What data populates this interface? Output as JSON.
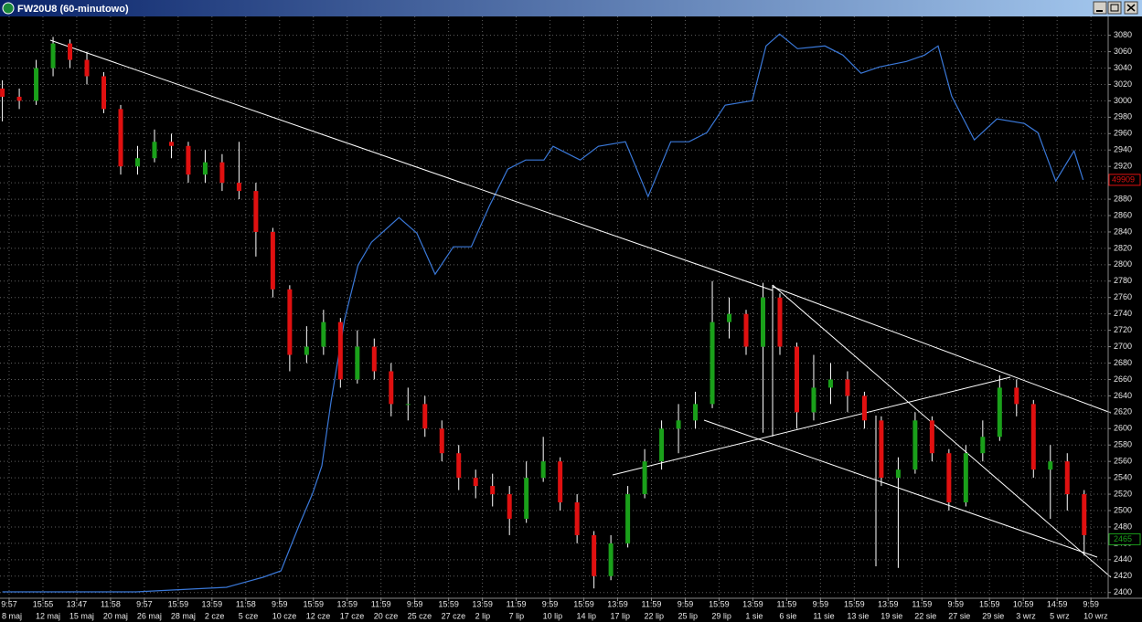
{
  "window_title": "FW20U8 (60-minutowo)",
  "chart_data": {
    "type": "candlestick",
    "xlim": [
      -0.27,
      32.51
    ],
    "ylim": [
      2393,
      3103
    ],
    "yticks": [
      2400,
      2420,
      2440,
      2460,
      2480,
      2500,
      2520,
      2540,
      2560,
      2580,
      2600,
      2620,
      2640,
      2660,
      2680,
      2700,
      2720,
      2740,
      2760,
      2780,
      2800,
      2820,
      2840,
      2860,
      2880,
      2900,
      2920,
      2940,
      2960,
      2980,
      3000,
      3020,
      3040,
      3060,
      3080
    ],
    "xticks": [
      {
        "value": 0,
        "label": "9:57",
        "date": "8 maj"
      },
      {
        "value": 1,
        "label": "15:55",
        "date": "12 maj"
      },
      {
        "value": 2,
        "label": "13:47",
        "date": "15 maj"
      },
      {
        "value": 3,
        "label": "11:58",
        "date": "20 maj"
      },
      {
        "value": 4,
        "label": "9:57",
        "date": "26 maj"
      },
      {
        "value": 5,
        "label": "15:59",
        "date": "28 maj"
      },
      {
        "value": 6,
        "label": "13:59",
        "date": "2 cze"
      },
      {
        "value": 7,
        "label": "11:58",
        "date": "5 cze"
      },
      {
        "value": 8,
        "label": "9:59",
        "date": "10 cze"
      },
      {
        "value": 9,
        "label": "15:59",
        "date": "12 cze"
      },
      {
        "value": 10,
        "label": "13:59",
        "date": "17 cze"
      },
      {
        "value": 11,
        "label": "11:59",
        "date": "20 cze"
      },
      {
        "value": 12,
        "label": "9:59",
        "date": "25 cze"
      },
      {
        "value": 13,
        "label": "15:59",
        "date": "27 cze"
      },
      {
        "value": 14,
        "label": "13:59",
        "date": "2 lip"
      },
      {
        "value": 15,
        "label": "11:59",
        "date": "7 lip"
      },
      {
        "value": 16,
        "label": "9:59",
        "date": "10 lip"
      },
      {
        "value": 17,
        "label": "15:59",
        "date": "14 lip"
      },
      {
        "value": 18,
        "label": "13:59",
        "date": "17 lip"
      },
      {
        "value": 19,
        "label": "11:59",
        "date": "22 lip"
      },
      {
        "value": 20,
        "label": "9:59",
        "date": "25 lip"
      },
      {
        "value": 21,
        "label": "15:59",
        "date": "29 lip"
      },
      {
        "value": 22,
        "label": "13:59",
        "date": "1 sie"
      },
      {
        "value": 23,
        "label": "11:59",
        "date": "6 sie"
      },
      {
        "value": 24,
        "label": "9:59",
        "date": "11 sie"
      },
      {
        "value": 25,
        "label": "15:59",
        "date": "13 sie"
      },
      {
        "value": 26,
        "label": "13:59",
        "date": "19 sie"
      },
      {
        "value": 27,
        "label": "11:59",
        "date": "22 sie"
      },
      {
        "value": 28,
        "label": "9:59",
        "date": "27 sie"
      },
      {
        "value": 29,
        "label": "15:59",
        "date": "29 sie"
      },
      {
        "value": 30,
        "label": "10:59",
        "date": "3 wrz"
      },
      {
        "value": 31,
        "label": "14:59",
        "date": "5 wrz"
      },
      {
        "value": 32,
        "label": "9:59",
        "date": "10 wrz"
      }
    ],
    "grid": true,
    "up_color": "#1aa01a",
    "down_color": "#e01010",
    "wick_color": "#ffffff",
    "candles": {
      "x": [
        -0.2,
        0.3,
        0.8,
        1.3,
        1.8,
        2.3,
        2.8,
        3.3,
        3.8,
        4.3,
        4.8,
        5.3,
        5.8,
        6.3,
        6.8,
        7.3,
        7.8,
        8.3,
        8.8,
        9.3,
        9.8,
        10.3,
        10.8,
        11.3,
        11.8,
        12.3,
        12.8,
        13.3,
        13.8,
        14.3,
        14.8,
        15.3,
        15.8,
        16.3,
        16.8,
        17.3,
        17.8,
        18.3,
        18.8,
        19.3,
        19.8,
        20.3,
        20.8,
        21.3,
        21.8,
        22.3,
        22.8,
        23.3,
        23.8,
        24.3,
        24.8,
        25.3,
        25.8,
        26.3,
        26.8,
        27.3,
        27.8,
        28.3,
        28.8,
        29.3,
        29.8,
        30.3,
        30.8,
        31.3,
        31.8
      ],
      "open": [
        3015,
        3005,
        3000,
        3040,
        3070,
        3050,
        3030,
        2990,
        2920,
        2930,
        2950,
        2945,
        2910,
        2925,
        2900,
        2890,
        2840,
        2770,
        2690,
        2700,
        2730,
        2660,
        2700,
        2670,
        2630,
        2630,
        2600,
        2570,
        2540,
        2530,
        2520,
        2490,
        2540,
        2560,
        2510,
        2470,
        2420,
        2460,
        2520,
        2560,
        2600,
        2610,
        2630,
        2730,
        2740,
        2700,
        2760,
        2700,
        2620,
        2650,
        2660,
        2640,
        2610,
        2540,
        2550,
        2610,
        2570,
        2510,
        2570,
        2590,
        2650,
        2630,
        2550,
        2560,
        2520
      ],
      "high": [
        3025,
        3015,
        3050,
        3078,
        3075,
        3060,
        3035,
        2995,
        2945,
        2965,
        2960,
        2950,
        2940,
        2935,
        2950,
        2900,
        2845,
        2775,
        2725,
        2745,
        2735,
        2720,
        2710,
        2680,
        2650,
        2640,
        2610,
        2580,
        2550,
        2545,
        2530,
        2560,
        2590,
        2565,
        2520,
        2475,
        2470,
        2530,
        2575,
        2610,
        2630,
        2645,
        2780,
        2760,
        2745,
        2778,
        2765,
        2705,
        2690,
        2680,
        2670,
        2645,
        2615,
        2565,
        2620,
        2615,
        2575,
        2580,
        2610,
        2665,
        2660,
        2635,
        2580,
        2570,
        2525
      ],
      "low": [
        2975,
        2990,
        2995,
        3030,
        3040,
        3020,
        2985,
        2910,
        2910,
        2925,
        2930,
        2900,
        2900,
        2890,
        2880,
        2810,
        2760,
        2670,
        2680,
        2690,
        2650,
        2655,
        2660,
        2615,
        2610,
        2590,
        2560,
        2525,
        2515,
        2505,
        2470,
        2485,
        2535,
        2500,
        2460,
        2405,
        2415,
        2455,
        2515,
        2550,
        2570,
        2600,
        2625,
        2710,
        2690,
        2595,
        2690,
        2600,
        2610,
        2630,
        2620,
        2600,
        2530,
        2430,
        2545,
        2560,
        2500,
        2505,
        2560,
        2585,
        2615,
        2540,
        2490,
        2500,
        2445
      ],
      "close": [
        3005,
        3000,
        3040,
        3070,
        3050,
        3030,
        2990,
        2920,
        2930,
        2950,
        2945,
        2910,
        2925,
        2900,
        2890,
        2840,
        2770,
        2690,
        2700,
        2730,
        2660,
        2700,
        2670,
        2630,
        2630,
        2600,
        2570,
        2540,
        2530,
        2520,
        2490,
        2540,
        2560,
        2510,
        2470,
        2420,
        2460,
        2520,
        2560,
        2600,
        2610,
        2630,
        2730,
        2740,
        2700,
        2760,
        2700,
        2620,
        2650,
        2660,
        2640,
        2610,
        2540,
        2550,
        2610,
        2570,
        2510,
        2570,
        2590,
        2650,
        2630,
        2550,
        2560,
        2520,
        2470
      ]
    },
    "price_marker": 2465,
    "price_marker_color": "#1aa01a",
    "y2lim": [
      0,
      69400
    ],
    "series": [
      {
        "axis": "y2",
        "color": "#3a78d8",
        "x": [
          -0.2,
          3.75,
          6.43,
          7.51,
          8.04,
          8.31,
          8.58,
          8.98,
          9.25,
          9.52,
          9.92,
          10.32,
          10.72,
          11.53,
          12.06,
          12.6,
          13.14,
          13.67,
          14.21,
          14.75,
          15.28,
          15.82,
          16.09,
          16.89,
          17.43,
          18.23,
          18.9,
          19.57,
          20.11,
          20.64,
          21.18,
          21.98,
          22.39,
          22.79,
          23.32,
          24.13,
          24.66,
          25.2,
          25.74,
          26.54,
          27.08,
          27.48,
          27.88,
          28.55,
          29.22,
          30.03,
          30.43,
          30.96,
          31.5,
          31.77
        ],
        "values": [
          762,
          762,
          1307,
          2505,
          3267,
          5989,
          8712,
          12524,
          15791,
          23414,
          33215,
          39749,
          42472,
          45412,
          43561,
          38660,
          41927,
          41927,
          46828,
          51184,
          52273,
          52273,
          53906,
          52273,
          53906,
          54451,
          47917,
          54451,
          54451,
          55540,
          58807,
          59351,
          65885,
          67301,
          65559,
          65885,
          64796,
          62618,
          63380,
          64034,
          64796,
          65885,
          59896,
          54669,
          57174,
          56629,
          55540,
          49768,
          53362,
          49909
        ],
        "marker_color": "#e01010"
      }
    ]
  }
}
